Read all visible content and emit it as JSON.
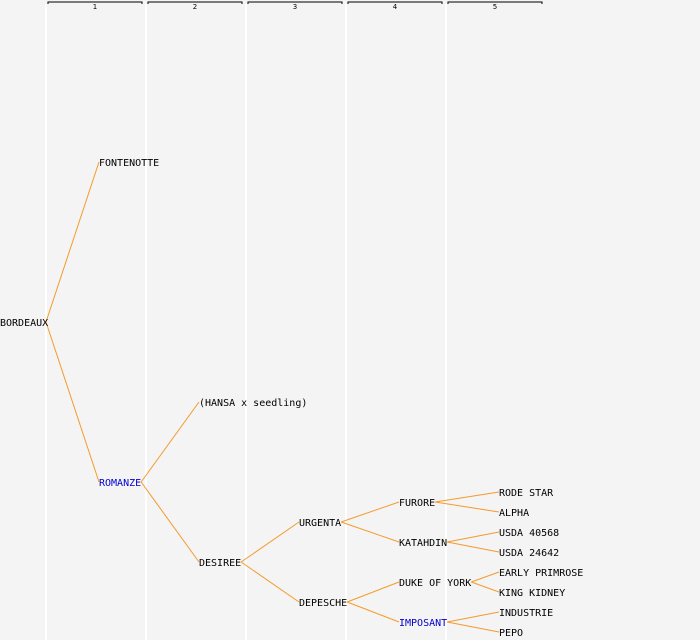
{
  "generations": [
    "1",
    "2",
    "3",
    "4",
    "5"
  ],
  "colors": {
    "background": "#f4f4f4",
    "edge": "#f59a2a",
    "column_line": "#ffffff",
    "bracket": "#000000",
    "text": "#000000",
    "highlight": "#0000cc"
  },
  "pedigree": {
    "name": "BORDEAUX",
    "children": [
      {
        "name": "FONTENOTTE"
      },
      {
        "name": "ROMANZE",
        "highlight": true,
        "children": [
          {
            "name": "(HANSA x seedling)"
          },
          {
            "name": "DESIREE",
            "children": [
              {
                "name": "URGENTA",
                "children": [
                  {
                    "name": "FURORE",
                    "children": [
                      {
                        "name": "RODE STAR"
                      },
                      {
                        "name": "ALPHA"
                      }
                    ]
                  },
                  {
                    "name": "KATAHDIN",
                    "children": [
                      {
                        "name": "USDA 40568"
                      },
                      {
                        "name": "USDA 24642"
                      }
                    ]
                  }
                ]
              },
              {
                "name": "DEPESCHE",
                "children": [
                  {
                    "name": "DUKE OF YORK",
                    "children": [
                      {
                        "name": "EARLY PRIMROSE"
                      },
                      {
                        "name": "KING KIDNEY"
                      }
                    ]
                  },
                  {
                    "name": "IMPOSANT",
                    "highlight": true,
                    "children": [
                      {
                        "name": "INDUSTRIE"
                      },
                      {
                        "name": "PEPO"
                      }
                    ]
                  }
                ]
              }
            ]
          }
        ]
      }
    ]
  }
}
